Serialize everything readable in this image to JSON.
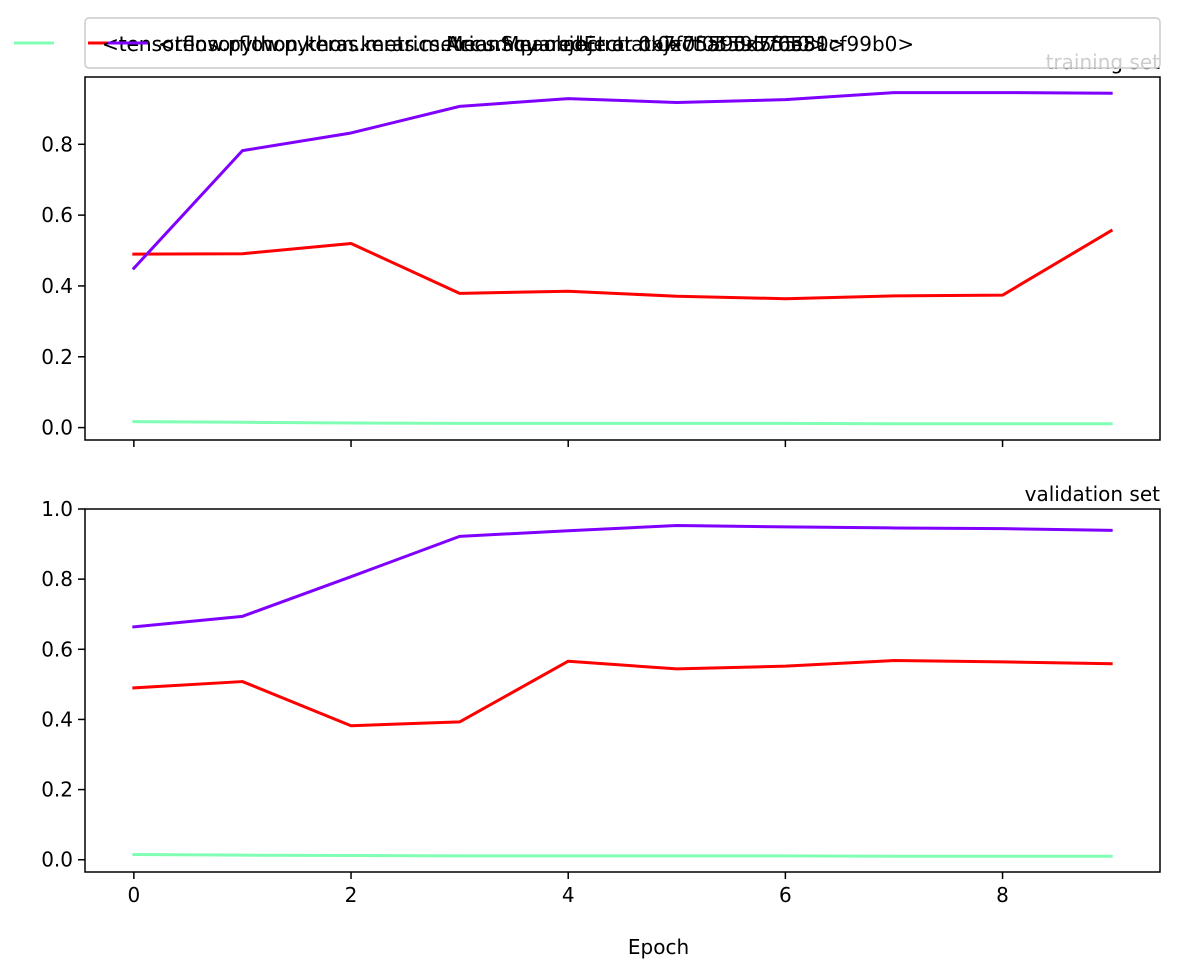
{
  "chart_data": [
    {
      "type": "line",
      "title": "training set",
      "title_position": "right",
      "x": [
        0,
        1,
        2,
        3,
        4,
        5,
        6,
        7,
        8,
        9
      ],
      "xlim": [
        -0.45,
        9.45
      ],
      "ylim": [
        -0.035,
        0.99
      ],
      "yticks": [
        0.0,
        0.2,
        0.4,
        0.6,
        0.8
      ],
      "ytick_labels": [
        "0.0",
        "0.2",
        "0.4",
        "0.6",
        "0.8"
      ],
      "xticks": [
        0,
        2,
        4,
        6,
        8
      ],
      "xtick_labels_visible": false,
      "grid": false,
      "series": [
        {
          "color": "#80ffb4",
          "values": [
            0.017,
            0.015,
            0.013,
            0.012,
            0.012,
            0.012,
            0.012,
            0.011,
            0.011,
            0.011
          ]
        },
        {
          "color": "#ff0000",
          "values": [
            0.49,
            0.491,
            0.52,
            0.379,
            0.385,
            0.371,
            0.364,
            0.372,
            0.374,
            0.556
          ]
        },
        {
          "color": "#8000ff",
          "values": [
            0.45,
            0.782,
            0.832,
            0.907,
            0.929,
            0.918,
            0.926,
            0.946,
            0.946,
            0.944
          ]
        }
      ]
    },
    {
      "type": "line",
      "title": "validation set",
      "title_position": "right",
      "x": [
        0,
        1,
        2,
        3,
        4,
        5,
        6,
        7,
        8,
        9
      ],
      "xlim": [
        -0.45,
        9.45
      ],
      "ylim": [
        -0.035,
        1.0
      ],
      "yticks": [
        0.0,
        0.2,
        0.4,
        0.6,
        0.8,
        1.0
      ],
      "ytick_labels": [
        "0.0",
        "0.2",
        "0.4",
        "0.6",
        "0.8",
        "1.0"
      ],
      "xticks": [
        0,
        2,
        4,
        6,
        8
      ],
      "xtick_labels": [
        "0",
        "2",
        "4",
        "6",
        "8"
      ],
      "xlabel": "Epoch",
      "grid": false,
      "series": [
        {
          "color": "#80ffb4",
          "values": [
            0.015,
            0.013,
            0.012,
            0.011,
            0.011,
            0.011,
            0.011,
            0.01,
            0.01,
            0.01
          ]
        },
        {
          "color": "#ff0000",
          "values": [
            0.49,
            0.508,
            0.382,
            0.393,
            0.566,
            0.544,
            0.552,
            0.568,
            0.564,
            0.559
          ]
        },
        {
          "color": "#8000ff",
          "values": [
            0.664,
            0.694,
            0.807,
            0.922,
            0.938,
            0.953,
            0.949,
            0.946,
            0.944,
            0.939
          ]
        }
      ]
    }
  ],
  "legend": {
    "placement": "top",
    "entries": [
      {
        "color": "#80ffb4",
        "label": "<tensorflow.python.keras.metrics.MeanSquaredError object at 0x7f0551cf99b0>"
      },
      {
        "color": "#ff0000",
        "label": "<tensorflow.python.keras.metrics.Accuracy object at 0x7f05595d5550>"
      },
      {
        "color": "#8000ff",
        "label": "<tensorflow.python.keras.metrics.Mean object at 0x7f0559576e80>"
      }
    ]
  }
}
